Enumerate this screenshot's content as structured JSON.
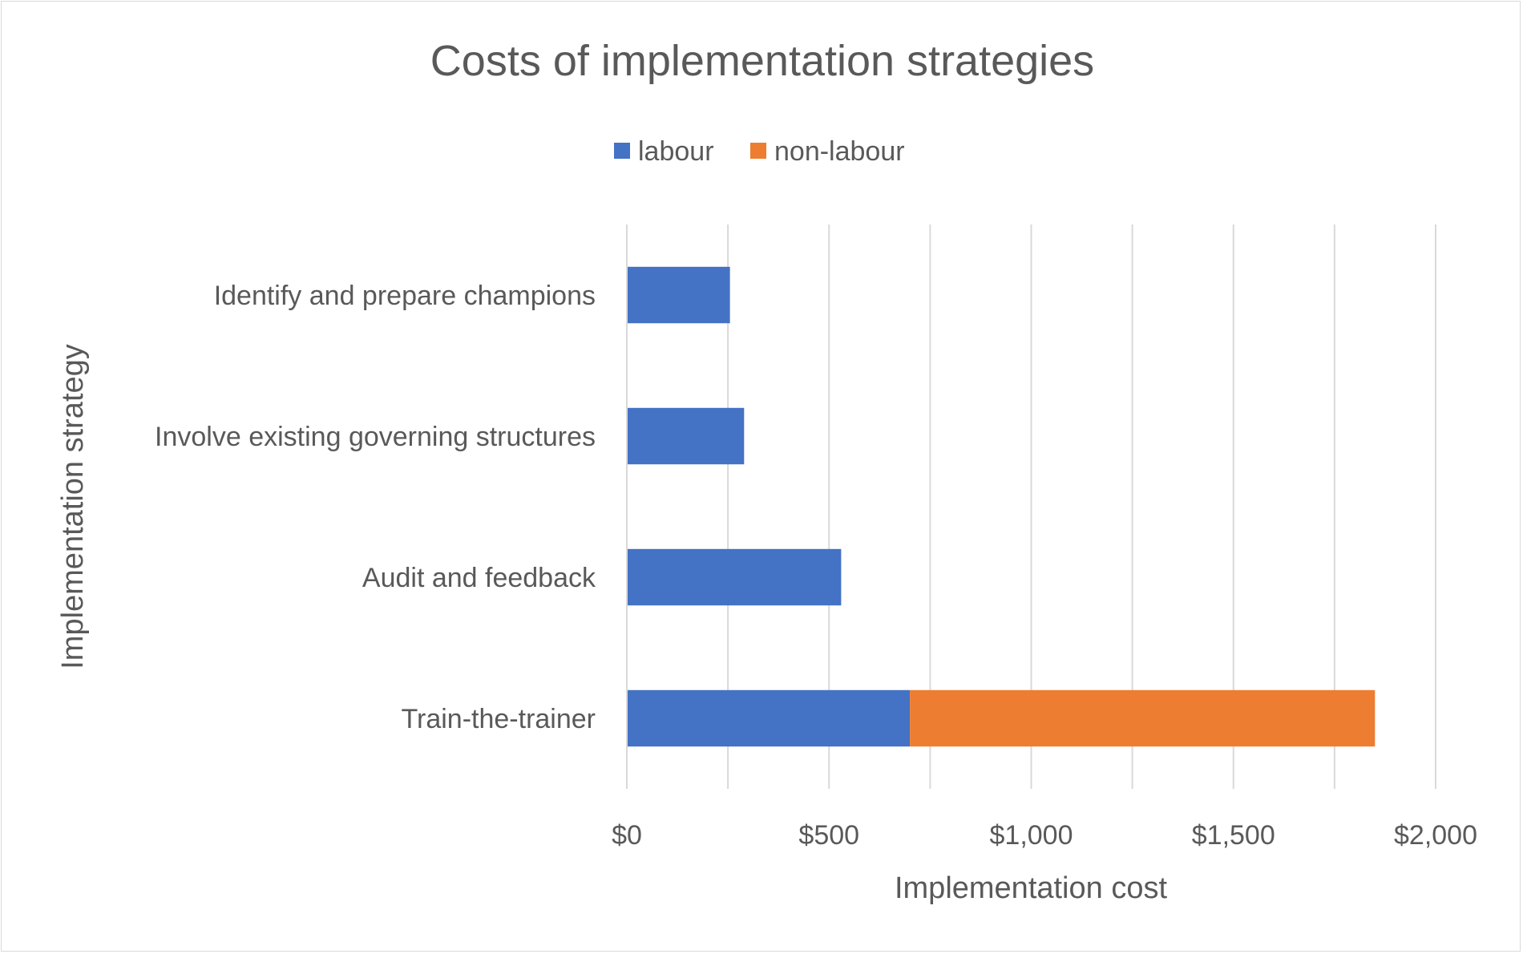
{
  "chart_data": {
    "type": "bar",
    "orientation": "horizontal",
    "stacked": true,
    "title": "Costs of implementation strategies",
    "xlabel": "Implementation cost",
    "ylabel": "Implementation strategy",
    "categories": [
      "Identify and prepare champions",
      "Involve existing governing structures",
      "Audit and feedback",
      "Train-the-trainer"
    ],
    "series": [
      {
        "name": "labour",
        "color": "#4472c4",
        "values": [
          255,
          290,
          530,
          700
        ]
      },
      {
        "name": "non-labour",
        "color": "#ed7d31",
        "values": [
          0,
          0,
          0,
          1150
        ]
      }
    ],
    "xlim": [
      0,
      2000
    ],
    "xticks": [
      0,
      500,
      1000,
      1500,
      2000
    ],
    "xtick_labels": [
      "$0",
      "$500",
      "$1,000",
      "$1,500",
      "$2,000"
    ],
    "grid": true,
    "legend": "top-center"
  }
}
